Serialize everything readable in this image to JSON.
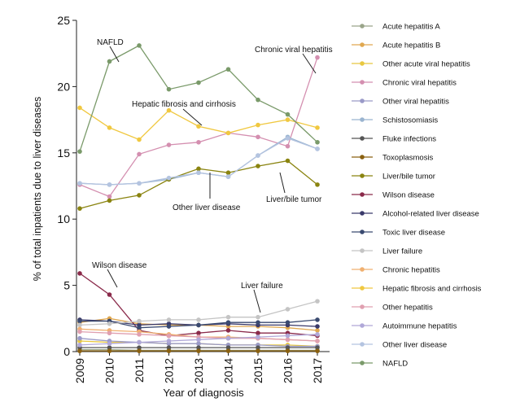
{
  "chart_data": {
    "type": "line",
    "xlabel": "Year of diagnosis",
    "ylabel": "% of total inpatients due to liver diseases",
    "x": [
      "2009",
      "2010",
      "2011",
      "2012",
      "2013",
      "2014",
      "2015",
      "2016",
      "2017"
    ],
    "ylim": [
      0,
      25
    ],
    "yticks": [
      "0",
      "5",
      "10",
      "15",
      "20",
      "25"
    ],
    "grid": false,
    "legend_position": "right",
    "series": [
      {
        "name": "Acute hepatitis  A",
        "color": "#9aa58a",
        "values": [
          0.15,
          0.15,
          0.1,
          0.1,
          0.1,
          0.1,
          0.1,
          0.1,
          0.1
        ]
      },
      {
        "name": "Acute hepatitis B",
        "color": "#e0a850",
        "values": [
          2.2,
          2.5,
          2.1,
          2.0,
          2.0,
          1.9,
          1.9,
          1.8,
          1.6
        ]
      },
      {
        "name": "Other acute viral hepatitis",
        "color": "#e8c840",
        "values": [
          0.8,
          0.7,
          0.7,
          0.6,
          0.6,
          0.5,
          0.5,
          0.5,
          0.4
        ]
      },
      {
        "name": "Chronic viral hepatitis",
        "color": "#d48fb0",
        "values": [
          12.6,
          11.7,
          14.9,
          15.6,
          15.8,
          16.5,
          16.2,
          15.5,
          22.2
        ]
      },
      {
        "name": "Other viral hepatitis",
        "color": "#9a9ac8",
        "values": [
          1.0,
          0.8,
          0.7,
          0.6,
          0.6,
          0.5,
          0.5,
          0.4,
          0.4
        ]
      },
      {
        "name": "Schistosomiasis",
        "color": "#9ab4d0",
        "values": [
          12.7,
          12.6,
          12.7,
          13.0,
          13.5,
          13.2,
          14.8,
          16.2,
          15.3
        ]
      },
      {
        "name": "Fluke infections",
        "color": "#555555",
        "values": [
          0.3,
          0.3,
          0.3,
          0.3,
          0.3,
          0.3,
          0.3,
          0.3,
          0.3
        ]
      },
      {
        "name": "Toxoplasmosis",
        "color": "#8a6010",
        "values": [
          0.05,
          0.05,
          0.05,
          0.05,
          0.05,
          0.05,
          0.05,
          0.05,
          0.05
        ]
      },
      {
        "name": "Liver/bile tumor",
        "color": "#8a8410",
        "values": [
          10.8,
          11.4,
          11.8,
          13.0,
          13.8,
          13.5,
          14.0,
          14.4,
          12.6
        ]
      },
      {
        "name": "Wilson disease",
        "color": "#8a2a4a",
        "values": [
          5.9,
          4.3,
          1.6,
          1.2,
          1.4,
          1.6,
          1.4,
          1.4,
          1.2
        ]
      },
      {
        "name": "Alcohol-related liver disease",
        "color": "#3a3a6a",
        "values": [
          2.4,
          2.3,
          2.0,
          2.1,
          2.0,
          2.1,
          2.0,
          2.0,
          1.9
        ]
      },
      {
        "name": "Toxic liver disease",
        "color": "#3a4a70",
        "values": [
          2.3,
          2.3,
          1.8,
          1.9,
          2.0,
          2.2,
          2.2,
          2.2,
          2.4
        ]
      },
      {
        "name": "Liver failure",
        "color": "#c4c4c4",
        "values": [
          2.0,
          2.1,
          2.3,
          2.4,
          2.4,
          2.6,
          2.6,
          3.2,
          3.8
        ]
      },
      {
        "name": "Chronic hepatitis",
        "color": "#f0b070",
        "values": [
          1.7,
          1.6,
          1.5,
          1.3,
          1.1,
          1.1,
          1.0,
          0.9,
          0.8
        ]
      },
      {
        "name": "Hepatic fibrosis and cirrhosis",
        "color": "#f0c840",
        "values": [
          18.4,
          16.9,
          16.0,
          18.2,
          17.0,
          16.5,
          17.1,
          17.5,
          16.9
        ]
      },
      {
        "name": " Other hepatitis",
        "color": "#e0a0b0",
        "values": [
          1.5,
          1.4,
          1.3,
          1.2,
          1.1,
          1.0,
          1.0,
          0.9,
          0.8
        ]
      },
      {
        "name": "Autoimmune hepatitis",
        "color": "#b0a8d8",
        "values": [
          0.5,
          0.6,
          0.7,
          0.8,
          0.9,
          1.0,
          1.1,
          1.2,
          1.3
        ]
      },
      {
        "name": "Other liver disease",
        "color": "#b4c4e0",
        "values": [
          12.7,
          12.6,
          12.7,
          13.1,
          13.5,
          13.2,
          14.8,
          16.1,
          15.3
        ]
      },
      {
        "name": "NAFLD",
        "color": "#7a9a6a",
        "values": [
          15.1,
          21.9,
          23.1,
          19.8,
          20.3,
          21.3,
          19.0,
          17.9,
          15.8
        ]
      }
    ],
    "annotations": [
      {
        "text": "NAFLD"
      },
      {
        "text": "Chronic viral hepatitis"
      },
      {
        "text": "Hepatic fibrosis and cirrhosis"
      },
      {
        "text": "Other liver disease"
      },
      {
        "text": "Liver/bile tumor"
      },
      {
        "text": "Wilson disease"
      },
      {
        "text": "Liver failure"
      }
    ]
  }
}
